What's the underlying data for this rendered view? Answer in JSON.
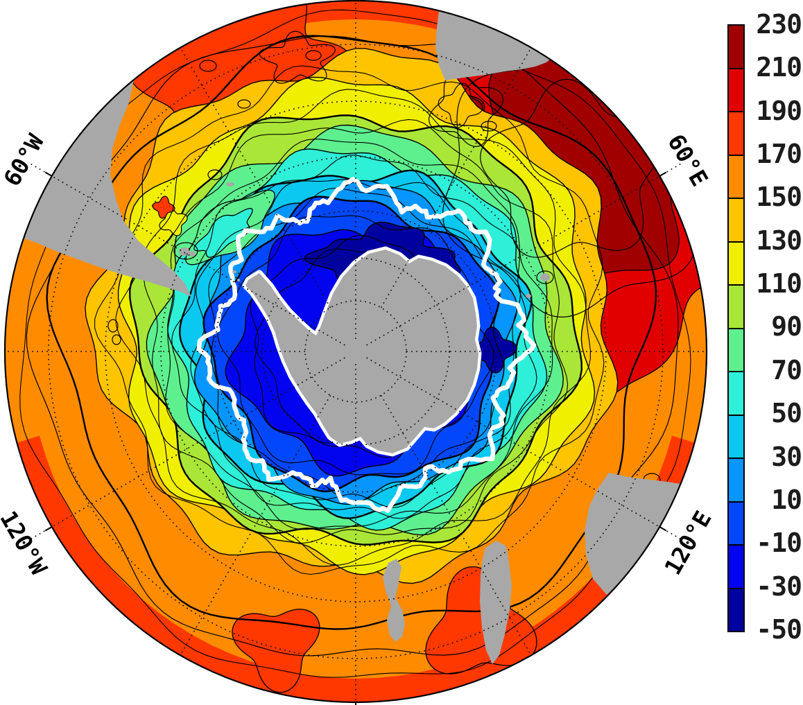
{
  "figure": {
    "background_color": "#ffffff",
    "land_color": "#a8a8a8",
    "contour_color": "#000000",
    "ice_edge_contour_color": "#ffffff",
    "outline_color": "#000000"
  },
  "chart_data": {
    "type": "heatmap",
    "projection": "south_polar_map",
    "title": "",
    "description": "Filled-contour field over the Southern Ocean centered on Antarctica; discrete 20-unit color levels from -50 (dark blue, near the Antarctic coast) to 230 (dark red, northeast sector of the map). Thin black contour lines follow the color levels, a thick white contour encircles Antarctica, and a dotted latitude/longitude graticule overlays the map. Land is gray.",
    "levels": {
      "min": -50,
      "max": 230,
      "step": 20
    },
    "colorbar": {
      "tick_values": [
        230,
        210,
        190,
        170,
        150,
        130,
        110,
        90,
        70,
        50,
        30,
        10,
        -10,
        -30,
        -50
      ],
      "tick_labels": [
        "230",
        "210",
        "190",
        "170",
        "150",
        "130",
        "110",
        "90",
        "70",
        "50",
        "30",
        "10",
        "-10",
        "-30",
        "-50"
      ],
      "palette_top_to_bottom": [
        "#a00000",
        "#e10000",
        "#ff3800",
        "#ff8c00",
        "#ffc400",
        "#f1ef00",
        "#aae637",
        "#5ef08f",
        "#2eefd8",
        "#0bc8f0",
        "#0795ff",
        "#0347fc",
        "#0203ef",
        "#0000a0"
      ],
      "position": "right"
    },
    "meridian_labels": [
      {
        "text": "60°W",
        "bearing_deg": 300
      },
      {
        "text": "60°E",
        "bearing_deg": 60
      },
      {
        "text": "120°W",
        "bearing_deg": 240
      },
      {
        "text": "120°E",
        "bearing_deg": 120
      }
    ],
    "graticule": {
      "style": "dotted",
      "latitude_circles": 6,
      "meridian_spacing_deg": 30
    },
    "land_masses": [
      "Antarctica",
      "South America (Patagonia / Tierra del Fuego)",
      "Falkland Islands",
      "southern Africa",
      "Western Australia",
      "Tasmania / SE Australia",
      "New Zealand",
      "Kerguelen Islands"
    ],
    "field_by_zone": [
      {
        "zone": "adjacent to the Antarctic coast",
        "value_range": "-50 to -10"
      },
      {
        "zone": "inner Southern Ocean ring",
        "value_range": "-10 to 50"
      },
      {
        "zone": "mid-latitude ring",
        "value_range": "50 to 130"
      },
      {
        "zone": "outer subtropical ring",
        "value_range": "130 to 190"
      },
      {
        "zone": "northeast sector (southeast of Africa)",
        "value_range": "190 to 230"
      }
    ],
    "white_contour": "thick white contour ring encircling Antarctica",
    "black_contours": "thin black contour lines at every 20-unit level"
  }
}
